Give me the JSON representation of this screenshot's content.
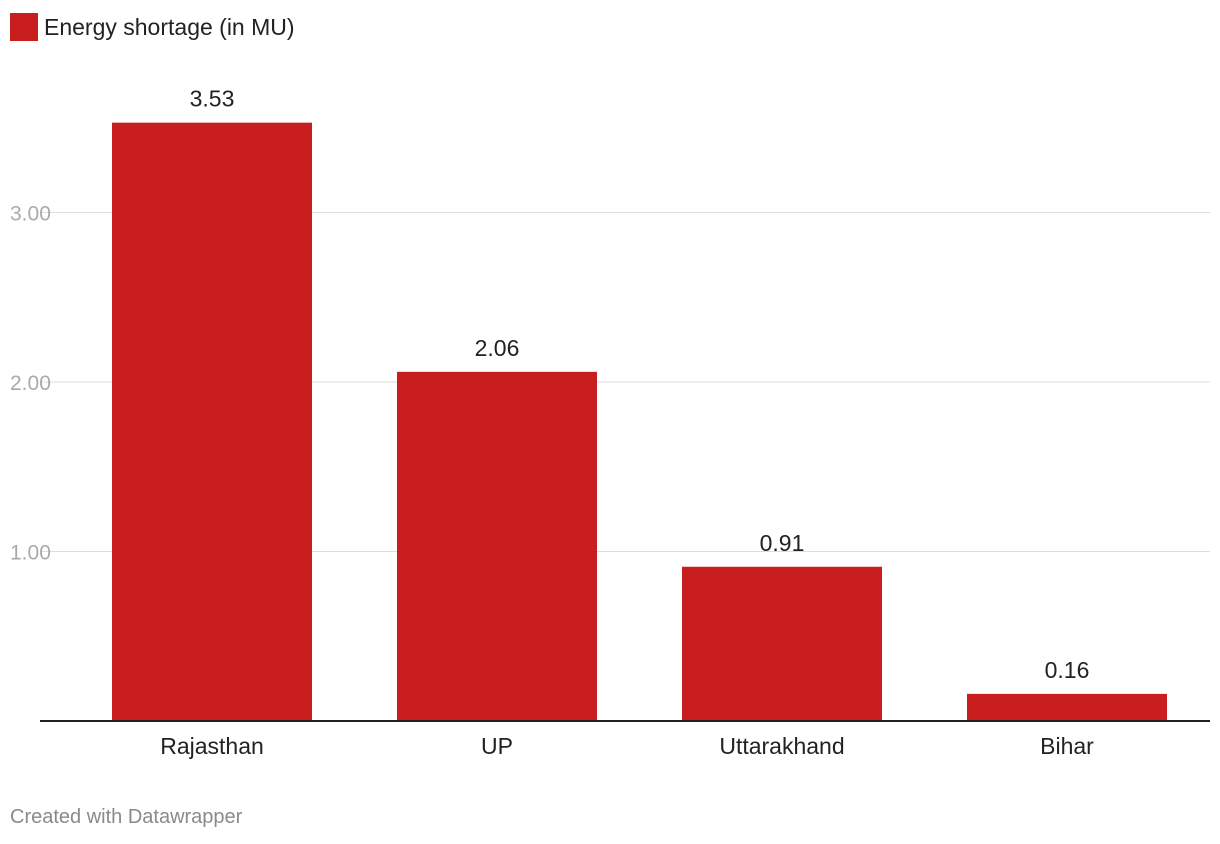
{
  "legend": {
    "label": "Energy shortage (in MU)",
    "color": "#c91e1e"
  },
  "footer": {
    "credit": "Created with Datawrapper"
  },
  "colors": {
    "bar": "#c91e1e",
    "grid": "#dddddd",
    "axis": "#222222",
    "tick_label": "#aaaaaa",
    "text": "#222222"
  },
  "chart_data": {
    "type": "bar",
    "title": "",
    "xlabel": "",
    "ylabel": "",
    "categories": [
      "Rajasthan",
      "UP",
      "Uttarakhand",
      "Bihar"
    ],
    "values": [
      3.53,
      2.06,
      0.91,
      0.16
    ],
    "value_labels": [
      "3.53",
      "2.06",
      "0.91",
      "0.16"
    ],
    "series": [
      {
        "name": "Energy shortage (in MU)",
        "values": [
          3.53,
          2.06,
          0.91,
          0.16
        ]
      }
    ],
    "ylim": [
      0,
      3.6
    ],
    "yticks": [
      1,
      2,
      3
    ],
    "ytick_labels": [
      "1.00",
      "2.00",
      "3.00"
    ],
    "grid": true,
    "legend_position": "top-left"
  }
}
